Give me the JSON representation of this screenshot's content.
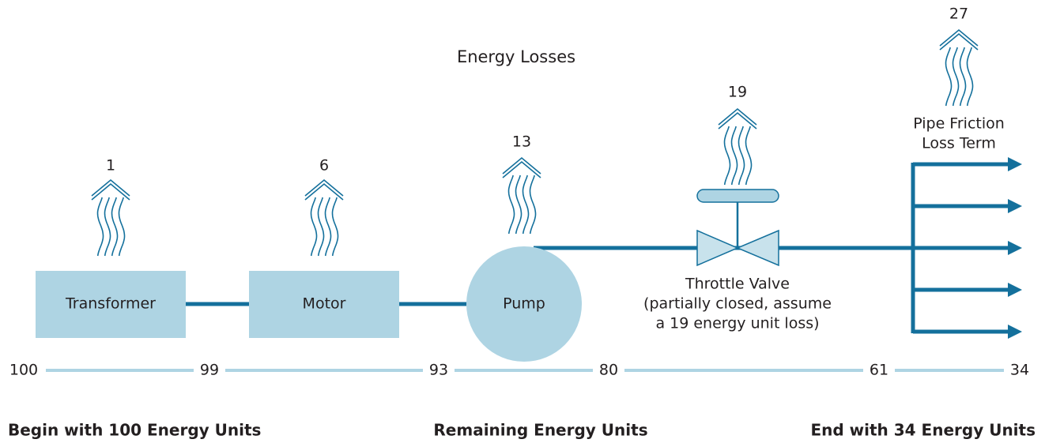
{
  "title": "Energy Losses",
  "components": [
    {
      "label": "Transformer",
      "loss": "1"
    },
    {
      "label": "Motor",
      "loss": "6"
    },
    {
      "label": "Pump",
      "loss": "13"
    },
    {
      "label": "Throttle Valve",
      "note": [
        "(partially closed, assume",
        "a 19 energy unit loss)"
      ],
      "loss": "19"
    },
    {
      "label": [
        "Pipe Friction",
        "Loss Term"
      ],
      "loss": "27"
    }
  ],
  "remaining": [
    "100",
    "99",
    "93",
    "80",
    "61",
    "34"
  ],
  "footer": {
    "left": "Begin with 100 Energy Units",
    "center": "Remaining Energy Units",
    "right": "End with 34 Energy Units"
  }
}
